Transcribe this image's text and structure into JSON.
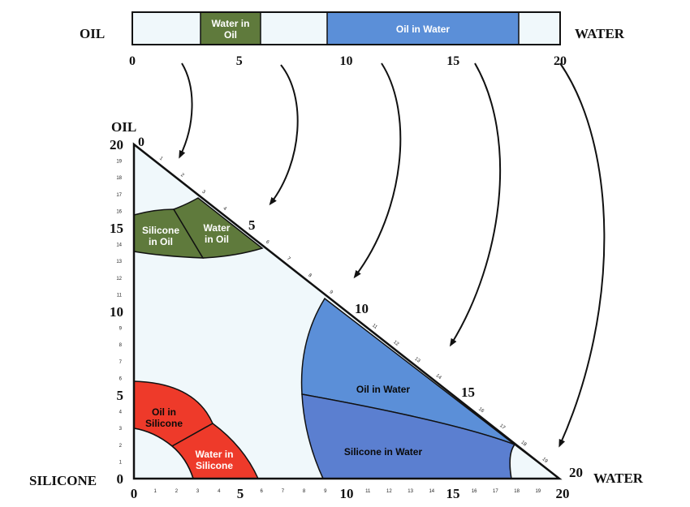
{
  "top_bar": {
    "left_label": "OIL",
    "right_label": "WATER",
    "regions": [
      {
        "label": "Water in Oil",
        "from": 3.2,
        "to": 6.0,
        "color": "#5f7a3c"
      },
      {
        "label": "Oil in Water",
        "from": 9.2,
        "to": 18.2,
        "color": "#5b8fd8"
      }
    ],
    "tick_labels": [
      "0",
      "5",
      "10",
      "15",
      "20"
    ],
    "tick_values": [
      0,
      5,
      10,
      15,
      20
    ]
  },
  "triangle": {
    "apex_oil": "OIL",
    "apex_silicone": "SILICONE",
    "apex_water": "WATER",
    "left_major": [
      "20",
      "15",
      "10",
      "5",
      "0"
    ],
    "left_major_values": [
      20,
      15,
      10,
      5,
      0
    ],
    "left_minor": [
      "19",
      "18",
      "17",
      "16",
      "14",
      "13",
      "12",
      "11",
      "9",
      "8",
      "7",
      "6",
      "4",
      "3",
      "2",
      "1"
    ],
    "left_minor_values": [
      19,
      18,
      17,
      16,
      14,
      13,
      12,
      11,
      9,
      8,
      7,
      6,
      4,
      3,
      2,
      1
    ],
    "bottom_major": [
      "0",
      "5",
      "10",
      "15",
      "20"
    ],
    "bottom_major_values": [
      0,
      5,
      10,
      15,
      20
    ],
    "bottom_minor": [
      "1",
      "2",
      "3",
      "4",
      "6",
      "7",
      "8",
      "9",
      "11",
      "12",
      "13",
      "14",
      "16",
      "17",
      "18",
      "19"
    ],
    "bottom_minor_values": [
      1,
      2,
      3,
      4,
      6,
      7,
      8,
      9,
      11,
      12,
      13,
      14,
      16,
      17,
      18,
      19
    ],
    "hyp_top_zero": "0",
    "hyp_major": [
      "5",
      "10",
      "15",
      "20"
    ],
    "hyp_major_values": [
      5,
      10,
      15,
      20
    ],
    "hyp_minor": [
      "1",
      "2",
      "3",
      "4",
      "6",
      "7",
      "8",
      "9",
      "11",
      "12",
      "13",
      "14",
      "16",
      "17",
      "18",
      "19"
    ],
    "hyp_minor_values": [
      1,
      2,
      3,
      4,
      6,
      7,
      8,
      9,
      11,
      12,
      13,
      14,
      16,
      17,
      18,
      19
    ]
  },
  "regions": {
    "silicone_in_oil": {
      "line1": "Silicone",
      "line2": "in Oil",
      "color": "#5f7a3c"
    },
    "water_in_oil": {
      "line1": "Water",
      "line2": "in Oil",
      "color": "#5f7a3c"
    },
    "oil_in_water": {
      "label": "Oil in Water",
      "color": "#5b8fd8"
    },
    "silicone_in_water": {
      "label": "Silicone in Water",
      "color": "#5b7fd0"
    },
    "oil_in_silicone": {
      "line1": "Oil in",
      "line2": "Silicone",
      "color": "#ee3a2a"
    },
    "water_in_silicone": {
      "line1": "Water in",
      "line2": "Silicone",
      "color": "#ee3a2a"
    }
  }
}
